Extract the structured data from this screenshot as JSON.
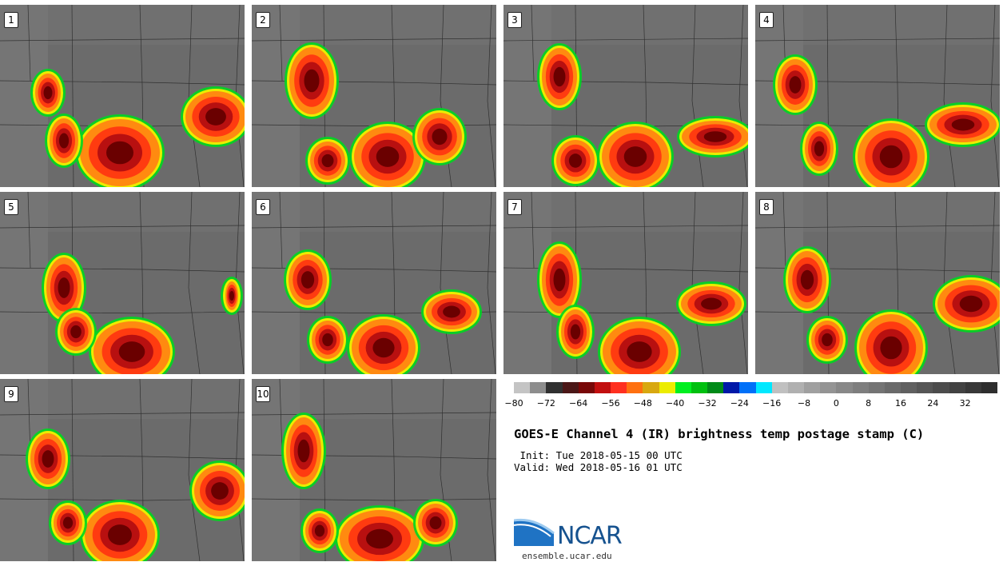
{
  "panels": [
    {
      "label": "1"
    },
    {
      "label": "2"
    },
    {
      "label": "3"
    },
    {
      "label": "4"
    },
    {
      "label": "5"
    },
    {
      "label": "6"
    },
    {
      "label": "7"
    },
    {
      "label": "8"
    },
    {
      "label": "9"
    },
    {
      "label": "10"
    }
  ],
  "colorbar": {
    "colors": [
      "#c4c4c4",
      "#8d8d8d",
      "#303030",
      "#4b1717",
      "#780808",
      "#c20f0f",
      "#ff3020",
      "#ff7010",
      "#d8a810",
      "#ecec00",
      "#00ef20",
      "#00c010",
      "#008a18",
      "#0018a8",
      "#0070f8",
      "#00e8ff",
      "#c0c0c0",
      "#b0b0b0",
      "#a0a0a0",
      "#949494",
      "#888888",
      "#7e7e7e",
      "#747474",
      "#6a6a6a",
      "#606060",
      "#565656",
      "#4c4c4c",
      "#424242",
      "#383838",
      "#2e2e2e"
    ],
    "ticks": [
      "−80",
      "−72",
      "−64",
      "−56",
      "−48",
      "−40",
      "−32",
      "−24",
      "−16",
      "−8",
      "0",
      "8",
      "16",
      "24",
      "32"
    ]
  },
  "title": "GOES-E Channel 4 (IR) brightness temp postage stamp (C)",
  "init_line": " Init: Tue 2018-05-15 00 UTC",
  "valid_line": "Valid: Wed 2018-05-16 01 UTC",
  "logo": {
    "text": "NCAR",
    "url": "ensemble.ucar.edu"
  }
}
